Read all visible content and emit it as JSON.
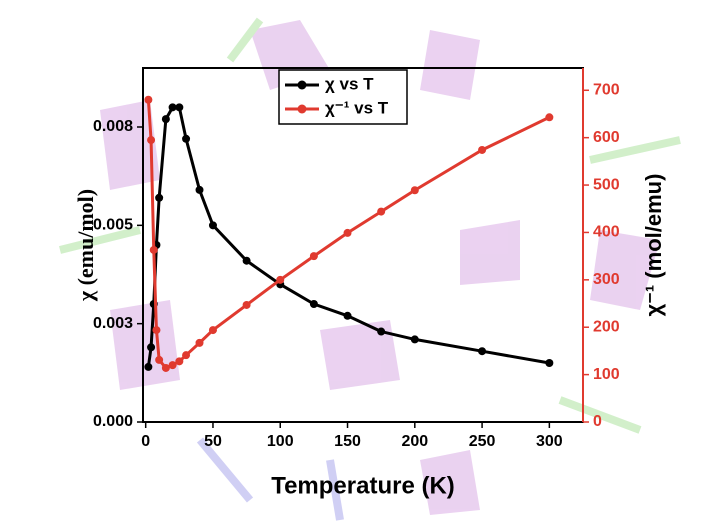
{
  "chart_data": {
    "type": "line",
    "xlabel": "Temperature (K)",
    "ylabel": "χ (emu/mol)",
    "y2label": "χ⁻¹ (mol/emu)",
    "x": [
      2,
      4,
      6,
      8,
      10,
      15,
      20,
      25,
      30,
      40,
      50,
      75,
      100,
      125,
      150,
      175,
      200,
      250,
      300
    ],
    "series": [
      {
        "name": "χ vs T",
        "color": "#000000",
        "axis": "y",
        "values": [
          0.0014,
          0.0019,
          0.003,
          0.0045,
          0.0057,
          0.0077,
          0.008,
          0.008,
          0.0072,
          0.0059,
          0.005,
          0.0041,
          0.0035,
          0.003,
          0.0027,
          0.0023,
          0.0021,
          0.0018,
          0.0015
        ]
      },
      {
        "name": "χ⁻¹ vs T",
        "color": "#e03a2f",
        "axis": "y2",
        "values": [
          680,
          595,
          363,
          194,
          131,
          114,
          120,
          128,
          141,
          167,
          194,
          247,
          300,
          350,
          399,
          444,
          489,
          574,
          643
        ]
      }
    ],
    "xlim": [
      -2,
      325
    ],
    "xticks": [
      0,
      50,
      100,
      150,
      200,
      250,
      300
    ],
    "ylim": [
      0,
      0.009
    ],
    "yticks": [
      {
        "value": 0,
        "label": "0.000"
      },
      {
        "value": 0.0025,
        "label": "0.003"
      },
      {
        "value": 0.005,
        "label": "0.005"
      },
      {
        "value": 0.0075,
        "label": "0.008"
      }
    ],
    "y2lim": [
      0,
      747
    ],
    "y2ticks": [
      0,
      100,
      200,
      300,
      400,
      500,
      600,
      700
    ],
    "legend": "upper-center"
  }
}
